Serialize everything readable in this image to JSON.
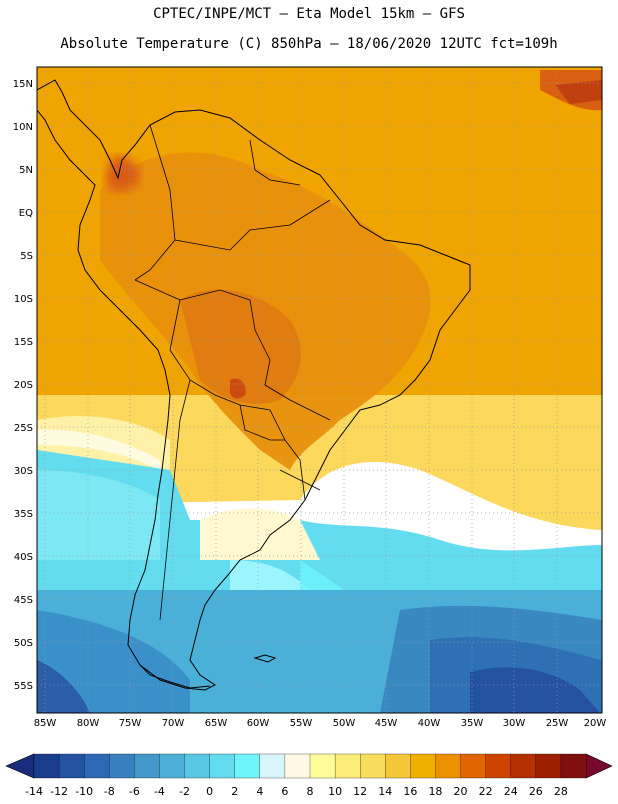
{
  "header": {
    "line1": "CPTEC/INPE/MCT  —  Eta Model 15km — GFS",
    "line2": "Absolute Temperature (C) 850hPa — 18/06/2020 12UTC fct=109h"
  },
  "map": {
    "lat_labels": [
      "15N",
      "10N",
      "5N",
      "EQ",
      "5S",
      "10S",
      "15S",
      "20S",
      "25S",
      "30S",
      "35S",
      "40S",
      "45S",
      "50S",
      "55S"
    ],
    "lon_labels": [
      "85W",
      "80W",
      "75W",
      "70W",
      "65W",
      "60W",
      "55W",
      "50W",
      "45W",
      "40W",
      "35W",
      "30W",
      "25W",
      "20W"
    ],
    "regions": [
      {
        "name": "equatorial-ocean",
        "color": "#f0a400"
      },
      {
        "name": "continental-interior",
        "color": "#e8880c"
      },
      {
        "name": "subtropical-band",
        "color": "#f8d860"
      },
      {
        "name": "mid-latitude",
        "color": "#60d8f0"
      },
      {
        "name": "southern-ocean",
        "color": "#3c8cc4"
      }
    ]
  },
  "colorbar": {
    "labels": [
      "-14",
      "-12",
      "-10",
      "-8",
      "-6",
      "-4",
      "-2",
      "0",
      "2",
      "4",
      "6",
      "8",
      "10",
      "12",
      "14",
      "16",
      "18",
      "20",
      "22",
      "24",
      "26",
      "28"
    ],
    "colors": [
      "#1a3c8c",
      "#2452a0",
      "#2e68b4",
      "#3a80c0",
      "#4498cc",
      "#4eb0d8",
      "#58c8e4",
      "#62dcee",
      "#6ef4fc",
      "#d8f4fc",
      "#fff8e4",
      "#fffc9c",
      "#fcec78",
      "#f8dc5c",
      "#f4c838",
      "#f0b000",
      "#ec9000",
      "#e06400",
      "#cc4400",
      "#b43000",
      "#9c2000",
      "#801010"
    ],
    "under_color": "#1a2c7c",
    "over_color": "#78082c"
  }
}
